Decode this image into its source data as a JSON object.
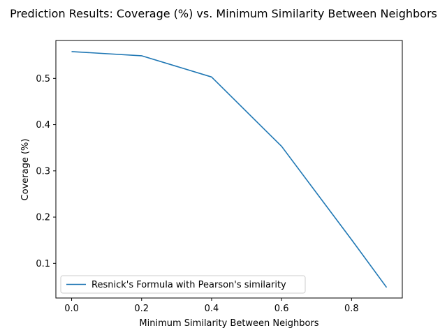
{
  "chart_data": {
    "type": "line",
    "title": "Prediction Results: Coverage (%) vs. Minimum Similarity Between Neighbors",
    "xlabel": "Minimum Similarity Between Neighbors",
    "ylabel": "Coverage (%)",
    "xlim": [
      -0.045,
      0.945
    ],
    "ylim": [
      0.025,
      0.582
    ],
    "xticks": [
      0.0,
      0.2,
      0.4,
      0.6,
      0.8
    ],
    "xtick_labels": [
      "0.0",
      "0.2",
      "0.4",
      "0.6",
      "0.8"
    ],
    "yticks": [
      0.1,
      0.2,
      0.3,
      0.4,
      0.5
    ],
    "ytick_labels": [
      "0.1",
      "0.2",
      "0.3",
      "0.4",
      "0.5"
    ],
    "grid": false,
    "legend_position": "lower-left",
    "series": [
      {
        "name": "Resnick's Formula with Pearson's similarity",
        "color": "#1f77b4",
        "x": [
          0.0,
          0.2,
          0.4,
          0.6,
          0.8,
          0.9
        ],
        "y": [
          0.558,
          0.549,
          0.503,
          0.353,
          0.151,
          0.048
        ]
      }
    ]
  }
}
